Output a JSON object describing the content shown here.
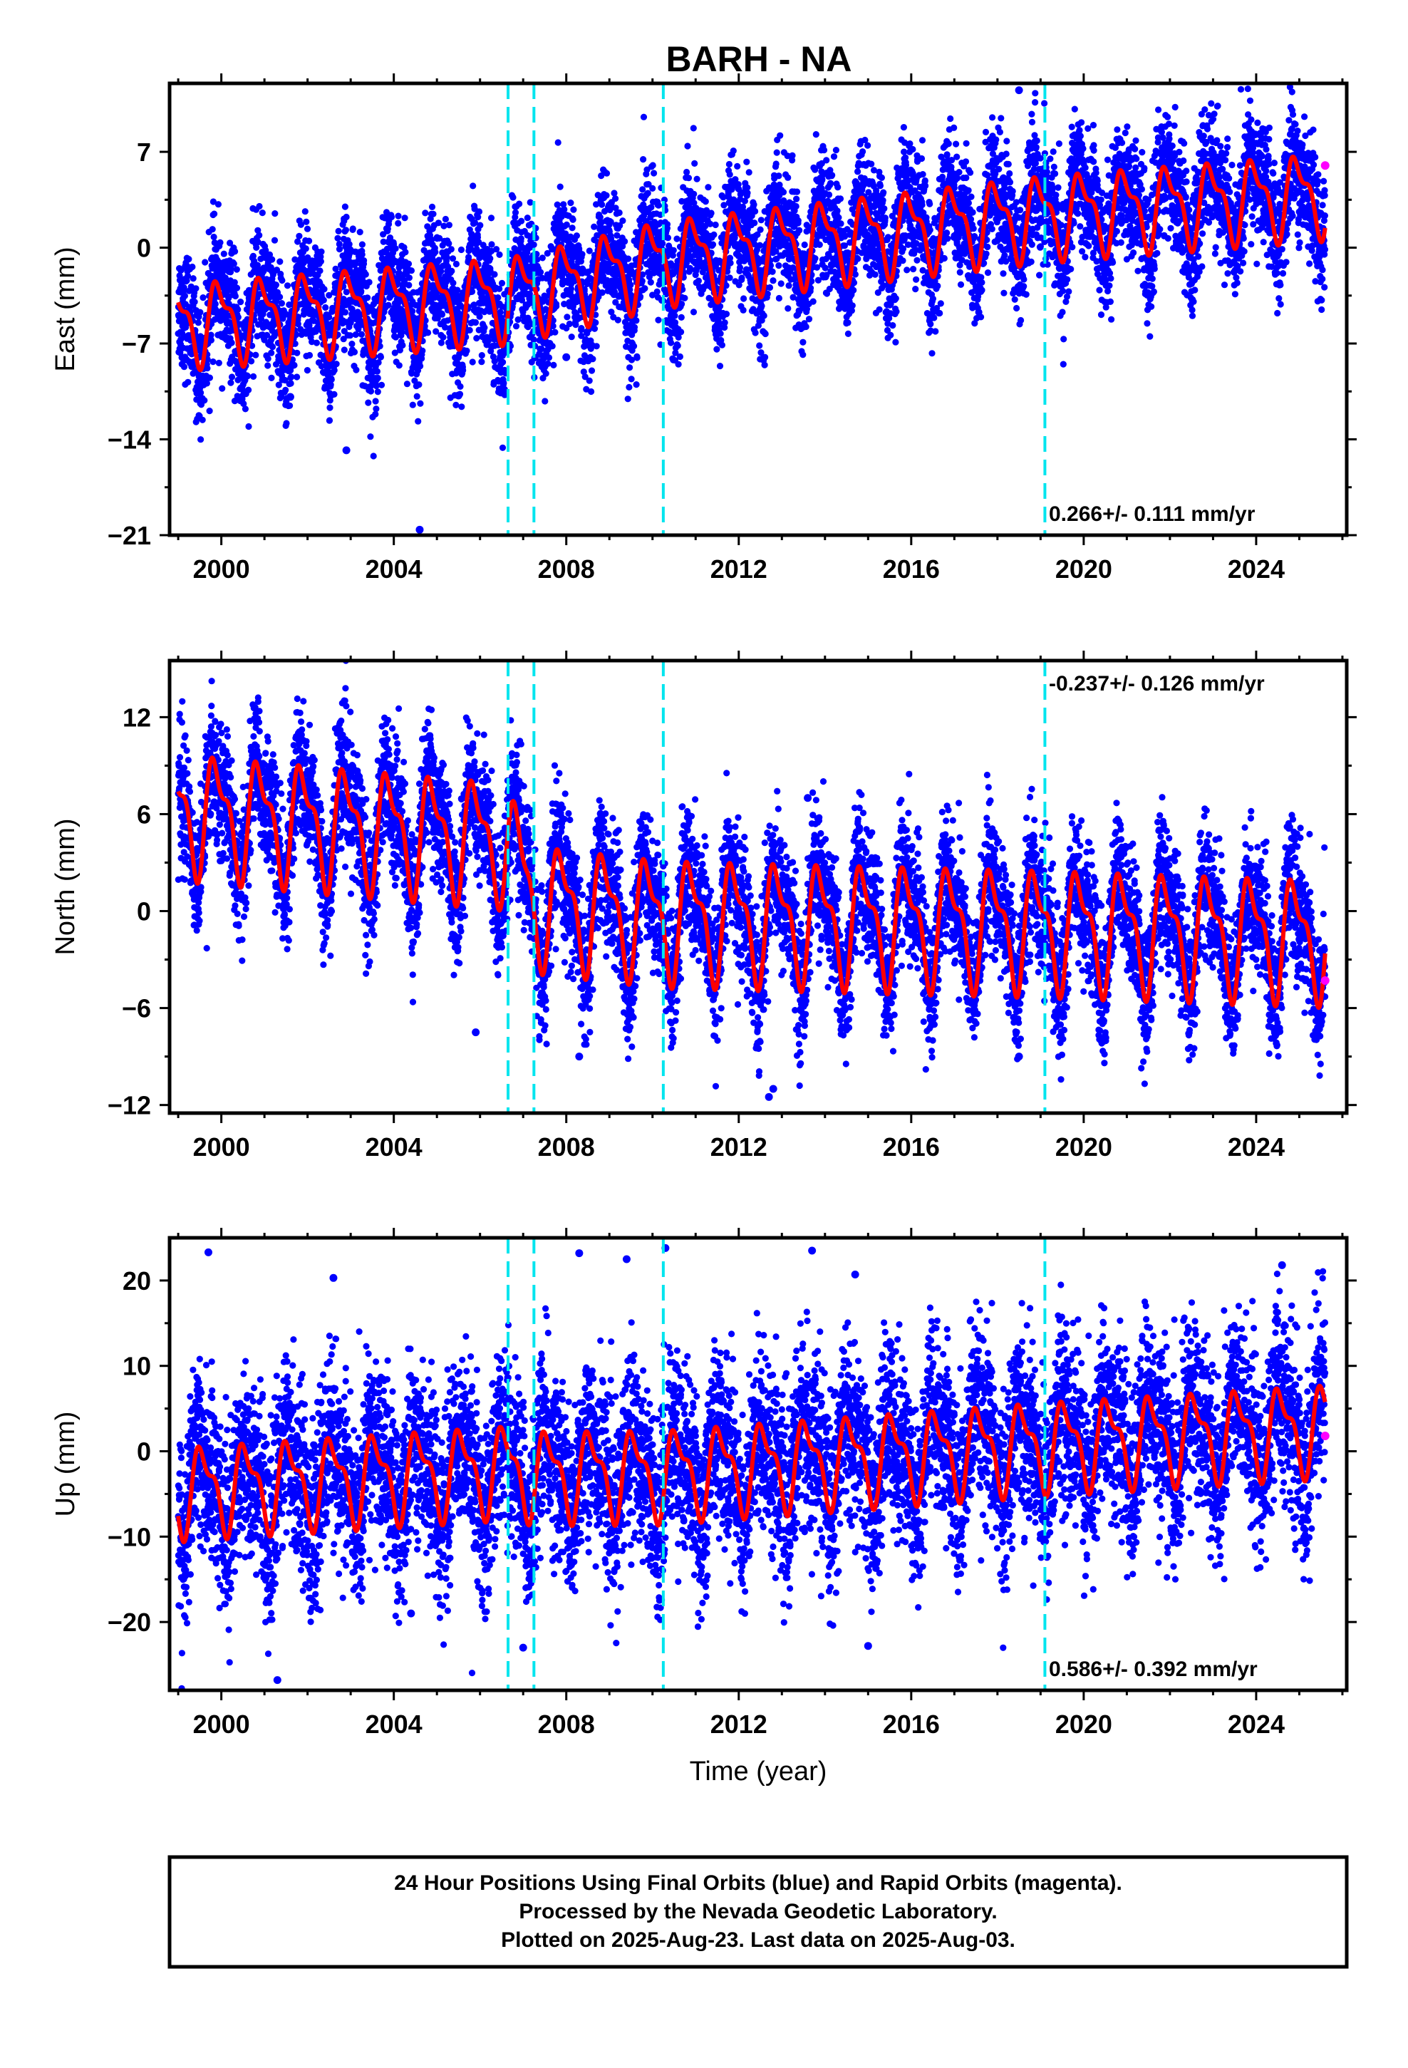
{
  "title": "BARH - NA",
  "footer": {
    "lines": [
      "24 Hour Positions Using Final Orbits (blue) and Rapid Orbits (magenta).",
      "Processed by the Nevada Geodetic Laboratory.",
      "Plotted on 2025-Aug-23. Last data on 2025-Aug-03."
    ]
  },
  "colors": {
    "final_orbits": "#0000ff",
    "rapid_orbits": "#ff00ff",
    "model_fit": "#ff0000",
    "breaks": "#00e5ee",
    "frame": "#000000"
  },
  "chart_data": [
    {
      "type": "scatter",
      "panel": "east",
      "ylabel": "East (mm)",
      "xlabel": "",
      "xlim": [
        1998.8,
        2026.1
      ],
      "ylim": [
        -21,
        12
      ],
      "yticks": [
        7,
        0,
        -7,
        -14,
        -21
      ],
      "ytick_labels": [
        "7",
        "0",
        "−7",
        "−14",
        "−21"
      ],
      "xticks": [
        2000,
        2004,
        2008,
        2012,
        2016,
        2020,
        2024
      ],
      "xtick_labels": [
        "2000",
        "2004",
        "2008",
        "2012",
        "2016",
        "2020",
        "2024"
      ],
      "rate_text": "0.266+/- 0.111 mm/yr",
      "rate_position": "bottom-right",
      "breaks": [
        2006.65,
        2007.25,
        2010.25,
        2019.1
      ],
      "trend": [
        [
          1999.0,
          -5.5
        ],
        [
          2006.6,
          -3.6
        ],
        [
          2007.25,
          -3.2
        ],
        [
          2010.25,
          -0.9
        ],
        [
          2019.1,
          2.4
        ],
        [
          2025.6,
          4.0
        ]
      ],
      "seasonal_amplitude": 2.6,
      "seasonal_phase": 1.8,
      "scatter_spread": 2.2,
      "n_points": 8500,
      "rapid_points": [
        [
          2025.6,
          6.0
        ]
      ],
      "outliers": [
        [
          2004.6,
          -20.6
        ],
        [
          2002.9,
          -14.8
        ],
        [
          2018.5,
          11.5
        ],
        [
          2005.5,
          -10.8
        ],
        [
          2001.6,
          -10.9
        ],
        [
          2008.0,
          -8.0
        ]
      ],
      "grid": false
    },
    {
      "type": "scatter",
      "panel": "north",
      "ylabel": "North (mm)",
      "xlabel": "",
      "xlim": [
        1998.8,
        2026.1
      ],
      "ylim": [
        -12.5,
        15.5
      ],
      "yticks": [
        12,
        6,
        0,
        -6,
        -12
      ],
      "ytick_labels": [
        "12",
        "6",
        "0",
        "−6",
        "−12"
      ],
      "xticks": [
        2000,
        2004,
        2008,
        2012,
        2016,
        2020,
        2024
      ],
      "xtick_labels": [
        "2000",
        "2004",
        "2008",
        "2012",
        "2016",
        "2020",
        "2024"
      ],
      "rate_text": "-0.237+/- 0.126 mm/yr",
      "rate_position": "top-right",
      "breaks": [
        2006.65,
        2007.25,
        2010.25,
        2019.1
      ],
      "trend": [
        [
          1999.0,
          6.2
        ],
        [
          2006.6,
          4.4
        ],
        [
          2007.25,
          0.5
        ],
        [
          2010.25,
          -0.4
        ],
        [
          2019.1,
          -1.0
        ],
        [
          2025.6,
          -1.6
        ]
      ],
      "seasonal_amplitude": 3.2,
      "seasonal_phase": 2.2,
      "scatter_spread": 2.0,
      "n_points": 8500,
      "rapid_points": [
        [
          2025.6,
          -4.3
        ]
      ],
      "outliers": [
        [
          2012.7,
          -11.5
        ],
        [
          2012.8,
          -11.0
        ],
        [
          2008.3,
          -9.0
        ],
        [
          2005.9,
          -7.5
        ],
        [
          2013.6,
          7.0
        ],
        [
          2018.5,
          -9.0
        ]
      ],
      "grid": false
    },
    {
      "type": "scatter",
      "panel": "up",
      "ylabel": "Up (mm)",
      "xlabel": "Time (year)",
      "xlim": [
        1998.8,
        2026.1
      ],
      "ylim": [
        -28,
        25
      ],
      "yticks": [
        20,
        10,
        0,
        -10,
        -20
      ],
      "ytick_labels": [
        "20",
        "10",
        "0",
        "−10",
        "−20"
      ],
      "xticks": [
        2000,
        2004,
        2008,
        2012,
        2016,
        2020,
        2024
      ],
      "xtick_labels": [
        "2000",
        "2004",
        "2008",
        "2012",
        "2016",
        "2020",
        "2024"
      ],
      "rate_text": "0.586+/- 0.392 mm/yr",
      "rate_position": "bottom-right",
      "breaks": [
        2006.65,
        2007.25,
        2010.25,
        2019.1
      ],
      "trend": [
        [
          1999.0,
          -4.5
        ],
        [
          2006.6,
          -2.0
        ],
        [
          2007.25,
          -2.6
        ],
        [
          2010.25,
          -2.5
        ],
        [
          2019.1,
          0.8
        ],
        [
          2025.6,
          2.8
        ]
      ],
      "seasonal_amplitude": 4.5,
      "seasonal_phase": 4.2,
      "scatter_spread": 5.2,
      "n_points": 8500,
      "rapid_points": [
        [
          2025.6,
          1.8
        ]
      ],
      "outliers": [
        [
          1999.7,
          23.3
        ],
        [
          2001.3,
          -26.8
        ],
        [
          2002.6,
          20.3
        ],
        [
          2008.3,
          23.2
        ],
        [
          2009.4,
          22.5
        ],
        [
          2010.3,
          23.8
        ],
        [
          2013.7,
          23.5
        ],
        [
          2014.7,
          20.7
        ],
        [
          2015.0,
          -22.8
        ],
        [
          2007.0,
          -23.0
        ],
        [
          2024.6,
          21.8
        ],
        [
          2004.4,
          -19.0
        ]
      ],
      "grid": false
    }
  ]
}
